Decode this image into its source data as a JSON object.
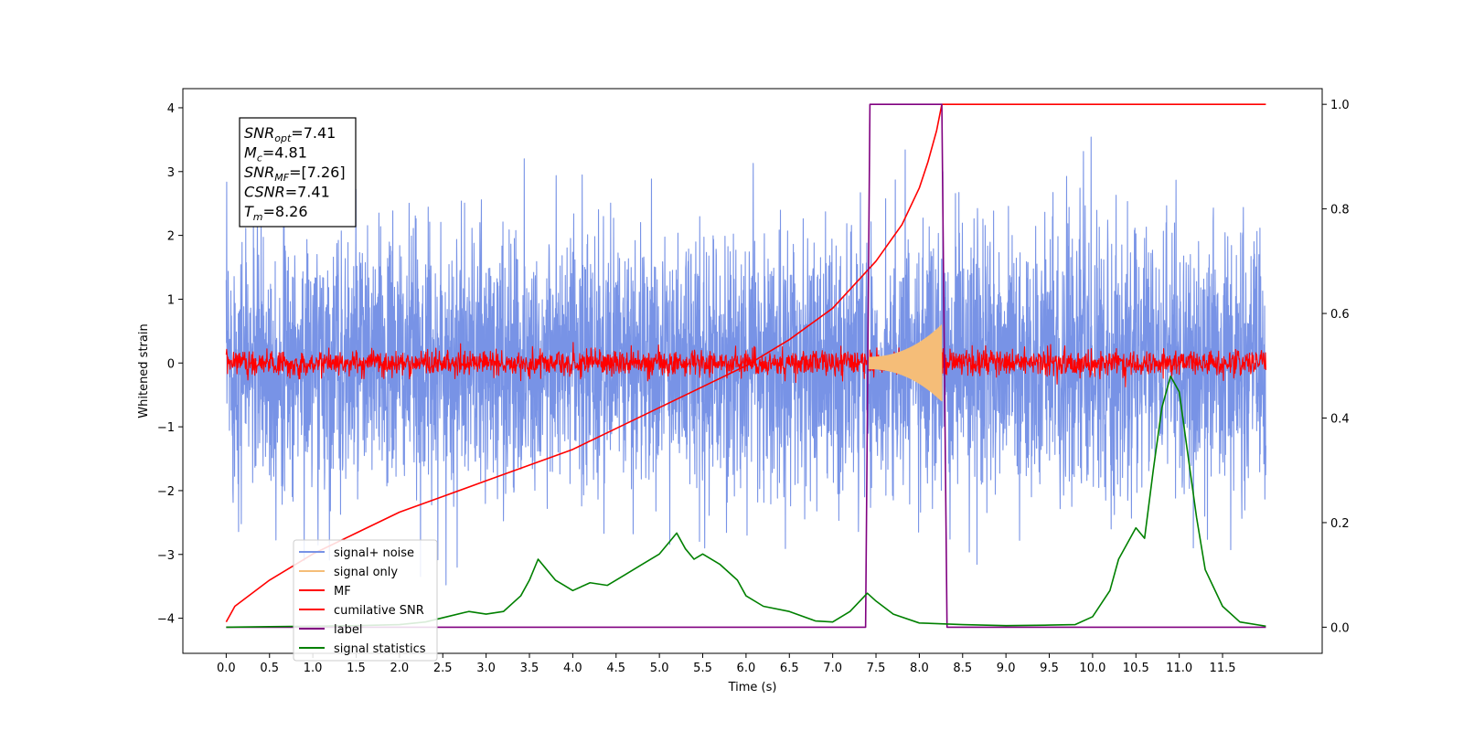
{
  "chart_data": {
    "type": "line",
    "xlabel": "Time (s)",
    "ylabel": "Whitened strain",
    "xlim": [
      -0.5,
      12.65
    ],
    "ylim": [
      -4.55,
      4.3
    ],
    "y2lim": [
      -0.05,
      1.03
    ],
    "x_ticks": [
      "0.0",
      "0.5",
      "1.0",
      "1.5",
      "2.0",
      "2.5",
      "3.0",
      "3.5",
      "4.0",
      "4.5",
      "5.0",
      "5.5",
      "6.0",
      "6.5",
      "7.0",
      "7.5",
      "8.0",
      "8.5",
      "9.0",
      "9.5",
      "10.0",
      "10.5",
      "11.0",
      "11.5"
    ],
    "y_ticks": [
      "4",
      "3",
      "2",
      "1",
      "0",
      "−1",
      "−2",
      "−3",
      "−4"
    ],
    "y2_ticks": [
      "1.0",
      "0.8",
      "0.6",
      "0.4",
      "0.2",
      "0.0"
    ],
    "grid": false,
    "legend_position": "lower-left",
    "annotation": {
      "snr_opt": {
        "label": "SNR",
        "sub": "opt",
        "value": "=7.41"
      },
      "mc": {
        "label": "M",
        "sub": "c",
        "value": "=4.81"
      },
      "snr_mf": {
        "label": "SNR",
        "sub": "MF",
        "value": "=[7.26]"
      },
      "csnr": {
        "label": "CSNR",
        "value": "=7.41"
      },
      "tm": {
        "label": "T",
        "sub": "m",
        "value": "=8.26"
      }
    },
    "series": [
      {
        "name": "signal+ noise",
        "color": "#7893e6",
        "axis": "left",
        "kind": "noise",
        "x_range": [
          0.0,
          12.0
        ],
        "std": 1.0
      },
      {
        "name": "signal only",
        "color": "#f5bd78",
        "axis": "left",
        "kind": "chirp",
        "x_range": [
          7.4,
          8.26
        ],
        "peak_amplitude": 0.6
      },
      {
        "name": "MF",
        "color": "#ff0000",
        "axis": "left",
        "kind": "noise",
        "x_range": [
          0.0,
          12.0
        ],
        "std": 0.1
      },
      {
        "name": "cumilative SNR",
        "color": "#ff0000",
        "axis": "right",
        "x": [
          0.0,
          0.1,
          0.5,
          1.0,
          1.5,
          2.0,
          2.5,
          3.0,
          3.5,
          4.0,
          4.5,
          5.0,
          5.5,
          6.0,
          6.5,
          7.0,
          7.5,
          7.8,
          8.0,
          8.1,
          8.2,
          8.26,
          8.27,
          12.0
        ],
        "y": [
          0.01,
          0.04,
          0.09,
          0.14,
          0.18,
          0.22,
          0.25,
          0.28,
          0.31,
          0.34,
          0.38,
          0.42,
          0.46,
          0.5,
          0.55,
          0.61,
          0.7,
          0.77,
          0.84,
          0.89,
          0.95,
          1.0,
          1.0,
          1.0
        ]
      },
      {
        "name": "label",
        "color": "#800080",
        "axis": "right",
        "x": [
          0.0,
          7.38,
          7.43,
          8.26,
          8.32,
          12.0
        ],
        "y": [
          0.0,
          0.0,
          1.0,
          1.0,
          0.0,
          0.0
        ]
      },
      {
        "name": "signal statistics",
        "color": "#008000",
        "axis": "right",
        "x": [
          0.0,
          0.5,
          1.0,
          1.5,
          2.0,
          2.3,
          2.5,
          2.8,
          3.0,
          3.2,
          3.4,
          3.5,
          3.6,
          3.7,
          3.8,
          3.9,
          4.0,
          4.2,
          4.4,
          4.6,
          4.8,
          5.0,
          5.1,
          5.2,
          5.3,
          5.4,
          5.5,
          5.7,
          5.9,
          6.0,
          6.2,
          6.5,
          6.8,
          7.0,
          7.2,
          7.4,
          7.5,
          7.7,
          8.0,
          8.5,
          9.0,
          9.5,
          9.8,
          10.0,
          10.2,
          10.3,
          10.5,
          10.6,
          10.7,
          10.8,
          10.9,
          11.0,
          11.1,
          11.2,
          11.3,
          11.5,
          11.7,
          12.0
        ],
        "y": [
          0.0,
          0.001,
          0.002,
          0.003,
          0.005,
          0.01,
          0.018,
          0.03,
          0.025,
          0.03,
          0.06,
          0.09,
          0.13,
          0.11,
          0.09,
          0.08,
          0.07,
          0.085,
          0.08,
          0.1,
          0.12,
          0.14,
          0.16,
          0.18,
          0.15,
          0.13,
          0.14,
          0.12,
          0.09,
          0.06,
          0.04,
          0.03,
          0.012,
          0.01,
          0.03,
          0.065,
          0.05,
          0.025,
          0.008,
          0.005,
          0.003,
          0.004,
          0.005,
          0.02,
          0.07,
          0.13,
          0.19,
          0.17,
          0.3,
          0.42,
          0.48,
          0.45,
          0.33,
          0.21,
          0.11,
          0.04,
          0.01,
          0.002
        ]
      }
    ]
  }
}
